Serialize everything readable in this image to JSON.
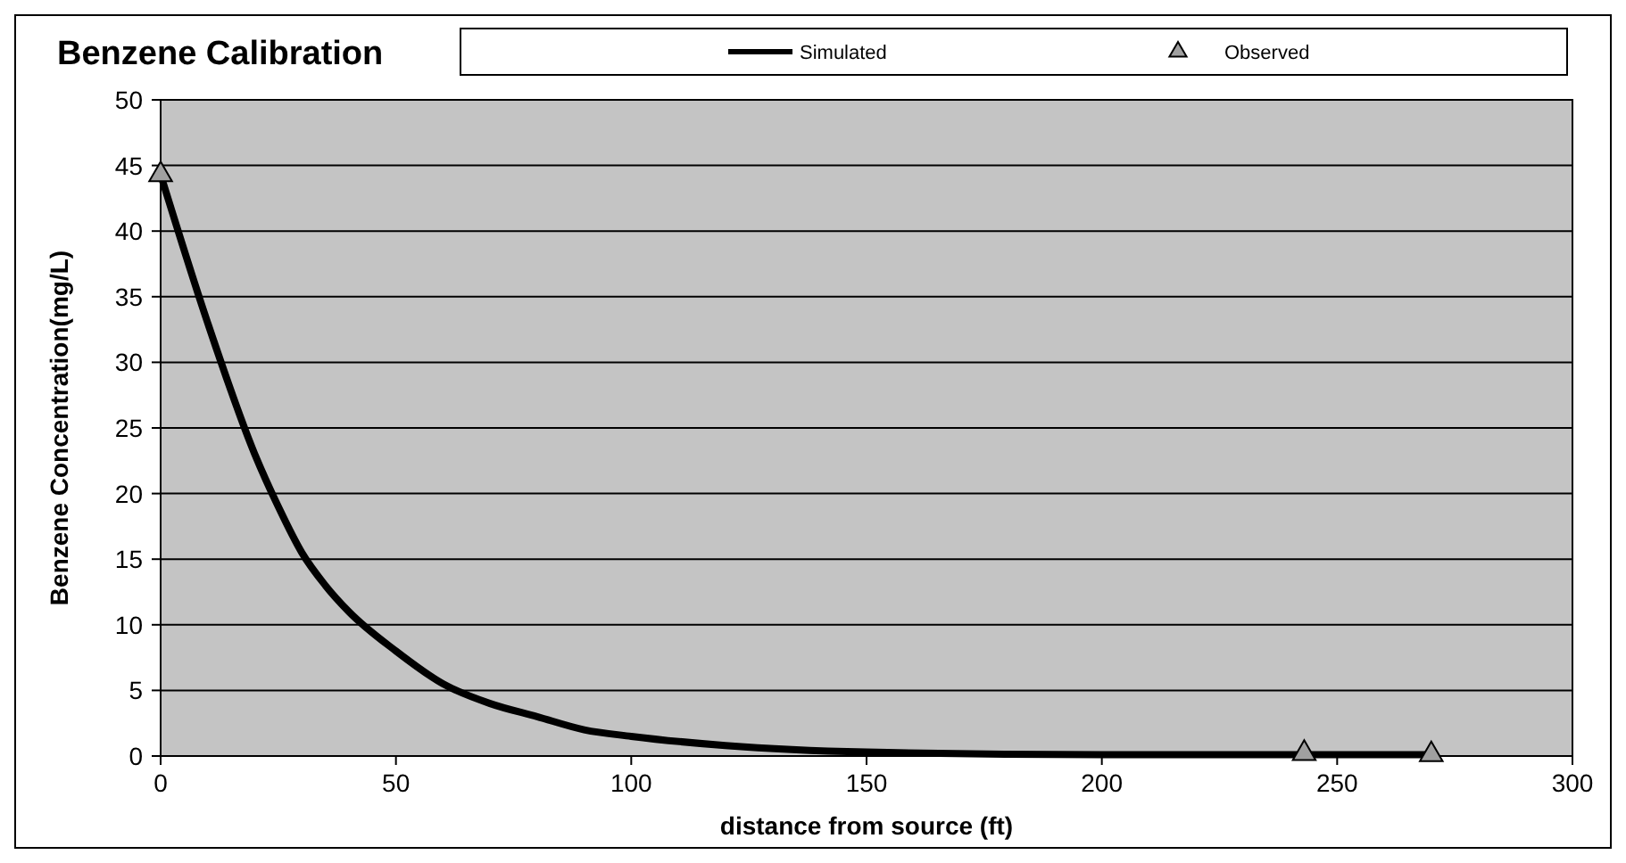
{
  "chart_data": {
    "type": "line",
    "title": "Benzene Calibration",
    "xlabel": "distance from source (ft)",
    "ylabel": "Benzene Concentration(mg/L)",
    "xlim": [
      0,
      300
    ],
    "xticks": [
      0,
      50,
      100,
      150,
      200,
      250,
      300
    ],
    "ylim": [
      0,
      50
    ],
    "yticks": [
      0,
      5,
      10,
      15,
      20,
      25,
      30,
      35,
      40,
      45,
      50
    ],
    "grid": "y",
    "legend": "top",
    "marker": "none",
    "line_style": "solid",
    "series": [
      {
        "name": "Simulated",
        "color": "#000000",
        "x": [
          0,
          10,
          20,
          25,
          30,
          35,
          40,
          50,
          60,
          70,
          80,
          90,
          100,
          120,
          150,
          200,
          270
        ],
        "values": [
          44.3,
          33,
          23,
          19,
          15.5,
          13,
          11,
          8,
          5.5,
          4,
          3,
          2,
          1.5,
          0.8,
          0.3,
          0.1,
          0.1
        ]
      },
      {
        "name": "Observed",
        "type": "scatter",
        "marker": "triangle",
        "color": "#a0a0a0",
        "x": [
          0,
          243,
          270
        ],
        "values": [
          44.3,
          0.2,
          0.1
        ]
      }
    ]
  }
}
